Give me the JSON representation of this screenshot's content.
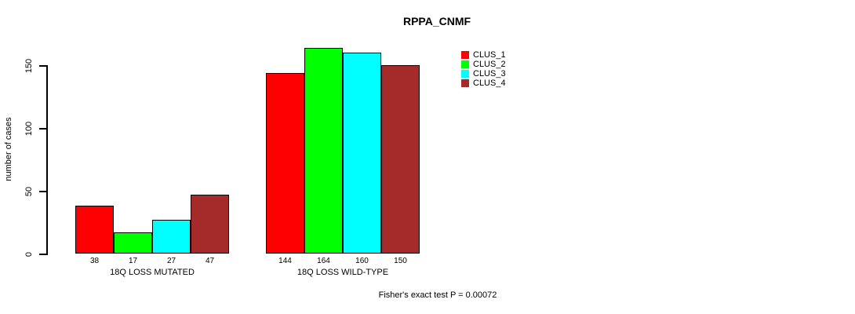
{
  "page": {
    "background": "#ffffff",
    "text_color": "#000000"
  },
  "chart_data": {
    "type": "bar",
    "title": "RPPA_CNMF",
    "ylabel": "number of cases",
    "xlabel": "",
    "annotation": "Fisher's exact test P = 0.00072",
    "categories": [
      "18Q LOSS MUTATED",
      "18Q LOSS WILD-TYPE"
    ],
    "series": [
      {
        "name": "CLUS_1",
        "color": "#FF0000",
        "values": [
          38,
          144
        ]
      },
      {
        "name": "CLUS_2",
        "color": "#00FF00",
        "values": [
          17,
          164
        ]
      },
      {
        "name": "CLUS_3",
        "color": "#00FFFF",
        "values": [
          27,
          160
        ]
      },
      {
        "name": "CLUS_4",
        "color": "#A52A2A",
        "values": [
          47,
          150
        ]
      }
    ],
    "yticks": [
      0,
      50,
      100,
      150
    ],
    "ylim": [
      0,
      164
    ],
    "show_bar_values": true,
    "grid": false,
    "legend_position": "top-right",
    "axis_color": "#000000",
    "bar_border_color": "#000000"
  }
}
